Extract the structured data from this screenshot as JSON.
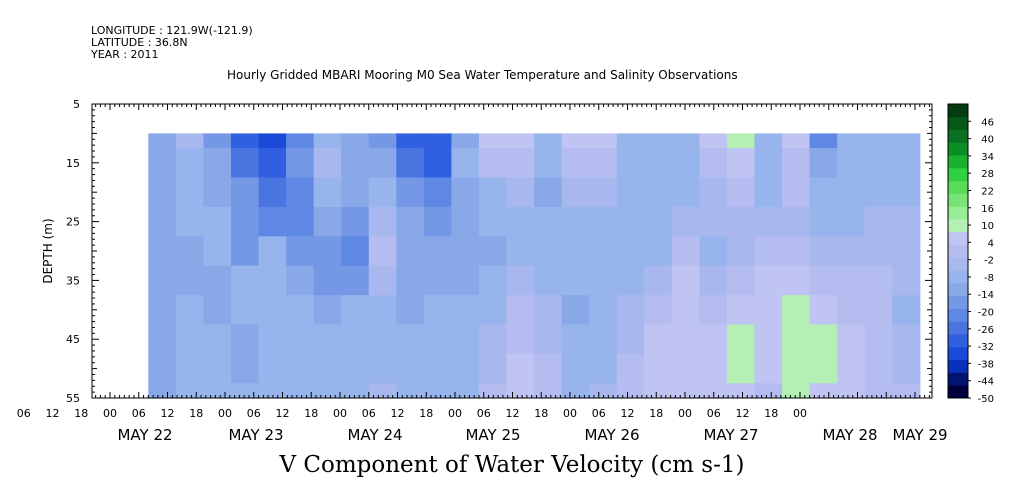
{
  "header": {
    "longitude": "LONGITUDE : 121.9W(-121.9)",
    "latitude": "LATITUDE : 36.8N",
    "year": "YEAR : 2011"
  },
  "chart_data": {
    "type": "heatmap",
    "title": "Hourly Gridded MBARI Mooring M0 Sea Water Temperature and Salinity Observations",
    "xlabel": "V Component of Water Velocity (cm s-1)",
    "ylabel": "DEPTH (m)",
    "ylim": [
      5,
      55
    ],
    "y_inverted": true,
    "y_ticks": [
      5,
      15,
      25,
      35,
      45,
      55
    ],
    "x_hour_ticks": [
      "06",
      "12",
      "18",
      "00",
      "06",
      "12",
      "18",
      "00",
      "06",
      "12",
      "18",
      "00",
      "06",
      "12",
      "18",
      "00",
      "06",
      "12",
      "18",
      "00",
      "06",
      "12",
      "18",
      "00",
      "06",
      "12",
      "18",
      "00"
    ],
    "x_day_labels": [
      "MAY 22",
      "MAY 23",
      "MAY 24",
      "MAY 25",
      "MAY 26",
      "MAY 27",
      "MAY 28",
      "MAY 29"
    ],
    "data_extent": {
      "start": "2011-05-22T08:00",
      "end": "2011-05-29T01:00",
      "depth_top": 10,
      "depth_bottom": 55
    },
    "colorbar": {
      "labels": [
        "46",
        "40",
        "34",
        "28",
        "22",
        "16",
        "10",
        "4",
        "-2",
        "-8",
        "-14",
        "-20",
        "-26",
        "-32",
        "-38",
        "-44",
        "-50"
      ],
      "range": [
        -50,
        52
      ],
      "colors": [
        "#00003c",
        "#001470",
        "#0830b8",
        "#1c4ad8",
        "#3060e0",
        "#4a74e0",
        "#5e88e4",
        "#7498e6",
        "#88a8e8",
        "#98b4ec",
        "#a8b8ee",
        "#b4bcf0",
        "#c0c4f2",
        "#b4f0b4",
        "#98ec98",
        "#78e478",
        "#58dc58",
        "#30d040",
        "#1cb030",
        "#0a8e24",
        "#087020",
        "#045818",
        "#023c10"
      ]
    },
    "velocity_field": {
      "units": "cm s-1",
      "hours_per_row": 6,
      "columns_depth_m": [
        10,
        15,
        20,
        25,
        30,
        35,
        40,
        45,
        50,
        55
      ],
      "rows": [
        [
          -14,
          -14,
          -13,
          -12,
          -12,
          -12,
          -12,
          -12,
          -12,
          -12
        ],
        [
          -4,
          -6,
          -8,
          -10,
          -12,
          -11,
          -8,
          -6,
          -8,
          -8
        ],
        [
          -16,
          -14,
          -12,
          -10,
          -10,
          -12,
          -12,
          -10,
          -8,
          -6
        ],
        [
          -28,
          -24,
          -18,
          -16,
          -16,
          -10,
          -8,
          -12,
          -12,
          -10
        ],
        [
          -34,
          -30,
          -26,
          -20,
          -10,
          -6,
          -6,
          -8,
          -10,
          -6
        ],
        [
          -22,
          -18,
          -20,
          -20,
          -16,
          -12,
          -10,
          -10,
          -10,
          -8
        ],
        [
          -6,
          -4,
          -8,
          -14,
          -18,
          -18,
          -14,
          -10,
          -8,
          -6
        ],
        [
          -14,
          -12,
          -12,
          -16,
          -20,
          -16,
          -10,
          -8,
          -8,
          -6
        ],
        [
          -18,
          -14,
          -10,
          -4,
          2,
          -2,
          -6,
          -8,
          -8,
          -4
        ],
        [
          -28,
          -24,
          -18,
          -14,
          -12,
          -12,
          -12,
          -10,
          -10,
          -8
        ],
        [
          -32,
          -28,
          -20,
          -16,
          -14,
          -12,
          -10,
          -8,
          -8,
          -6
        ],
        [
          -14,
          -10,
          -12,
          -14,
          -14,
          -12,
          -10,
          -8,
          -8,
          -6
        ],
        [
          6,
          2,
          -6,
          -10,
          -12,
          -10,
          -6,
          -4,
          -4,
          0
        ],
        [
          4,
          0,
          -4,
          -8,
          -6,
          -4,
          0,
          2,
          4,
          4
        ],
        [
          -10,
          -10,
          -12,
          -10,
          -8,
          -6,
          -4,
          -2,
          0,
          0
        ],
        [
          4,
          2,
          -4,
          -8,
          -10,
          -10,
          -12,
          -10,
          -8,
          -6
        ],
        [
          6,
          2,
          -4,
          -8,
          -10,
          -10,
          -8,
          -6,
          -6,
          -4
        ],
        [
          -6,
          -8,
          -10,
          -10,
          -8,
          -6,
          -4,
          -2,
          0,
          2
        ],
        [
          -6,
          -6,
          -8,
          -8,
          -6,
          -2,
          2,
          4,
          6,
          6
        ],
        [
          -10,
          -8,
          -6,
          -2,
          2,
          4,
          6,
          6,
          6,
          6
        ],
        [
          4,
          2,
          -2,
          -4,
          -6,
          -4,
          0,
          4,
          6,
          4
        ],
        [
          8,
          4,
          0,
          -4,
          -2,
          2,
          6,
          8,
          8,
          6
        ],
        [
          -6,
          -6,
          -6,
          -4,
          0,
          4,
          6,
          6,
          4,
          2
        ],
        [
          6,
          2,
          0,
          -2,
          0,
          4,
          8,
          10,
          10,
          8
        ],
        [
          -20,
          -14,
          -8,
          -6,
          -4,
          0,
          6,
          8,
          8,
          6
        ],
        [
          -6,
          -8,
          -10,
          -8,
          -4,
          0,
          2,
          4,
          6,
          4
        ],
        [
          -10,
          -8,
          -6,
          -4,
          -2,
          0,
          2,
          2,
          2,
          0
        ],
        [
          -6,
          -6,
          -6,
          -4,
          -2,
          -4,
          -6,
          -4,
          -2,
          0
        ]
      ]
    }
  }
}
